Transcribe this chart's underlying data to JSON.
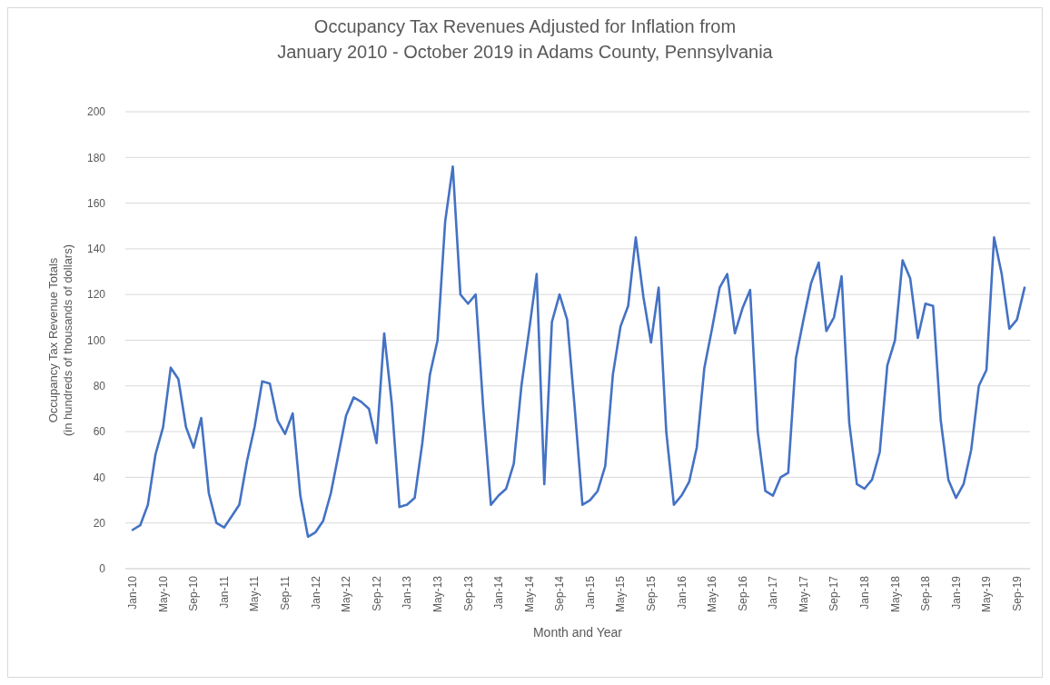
{
  "chart_data": {
    "type": "line",
    "title": "Occupancy Tax Revenues Adjusted for Inflation from\nJanuary 2010 - October 2019 in Adams County, Pennsylvania",
    "xlabel": "Month and Year",
    "ylabel": "Occupancy Tax Revenue Totals\n(in hundreds of thousands of dollars)",
    "categories": [
      "Jan-10",
      null,
      null,
      null,
      "May-10",
      null,
      null,
      null,
      "Sep-10",
      null,
      null,
      null,
      "Jan-11",
      null,
      null,
      null,
      "May-11",
      null,
      null,
      null,
      "Sep-11",
      null,
      null,
      null,
      "Jan-12",
      null,
      null,
      null,
      "May-12",
      null,
      null,
      null,
      "Sep-12",
      null,
      null,
      null,
      "Jan-13",
      null,
      null,
      null,
      "May-13",
      null,
      null,
      null,
      "Sep-13",
      null,
      null,
      null,
      "Jan-14",
      null,
      null,
      null,
      "May-14",
      null,
      null,
      null,
      "Sep-14",
      null,
      null,
      null,
      "Jan-15",
      null,
      null,
      null,
      "May-15",
      null,
      null,
      null,
      "Sep-15",
      null,
      null,
      null,
      "Jan-16",
      null,
      null,
      null,
      "May-16",
      null,
      null,
      null,
      "Sep-16",
      null,
      null,
      null,
      "Jan-17",
      null,
      null,
      null,
      "May-17",
      null,
      null,
      null,
      "Sep-17",
      null,
      null,
      null,
      "Jan-18",
      null,
      null,
      null,
      "May-18",
      null,
      null,
      null,
      "Sep-18",
      null,
      null,
      null,
      "Jan-19",
      null,
      null,
      null,
      "May-19",
      null,
      null,
      null,
      "Sep-19",
      null
    ],
    "series": [
      {
        "color": "#4472c4",
        "values": [
          17,
          19,
          28,
          50,
          62,
          88,
          83,
          62,
          53,
          66,
          33,
          20,
          18,
          23,
          28,
          47,
          62,
          82,
          81,
          65,
          59,
          68,
          32,
          14,
          16,
          21,
          33,
          50,
          67,
          75,
          73,
          70,
          55,
          103,
          72,
          27,
          28,
          31,
          55,
          85,
          100,
          152,
          176,
          120,
          116,
          120,
          70,
          28,
          32,
          35,
          46,
          80,
          104,
          129,
          37,
          108,
          120,
          109,
          70,
          28,
          30,
          34,
          45,
          85,
          106,
          115,
          145,
          119,
          99,
          123,
          60,
          28,
          32,
          38,
          53,
          88,
          105,
          123,
          129,
          103,
          114,
          122,
          60,
          34,
          32,
          40,
          42,
          92,
          109,
          125,
          134,
          104,
          110,
          128,
          64,
          37,
          35,
          39,
          51,
          89,
          100,
          135,
          127,
          101,
          116,
          115,
          65,
          39,
          31,
          37,
          52,
          80,
          87,
          145,
          129,
          105,
          109,
          123
        ]
      }
    ],
    "ylim": [
      0,
      200
    ],
    "yticks": [
      0,
      20,
      40,
      60,
      80,
      100,
      120,
      140,
      160,
      180,
      200
    ],
    "grid": "y",
    "marker": "none",
    "line_style": "solid"
  }
}
